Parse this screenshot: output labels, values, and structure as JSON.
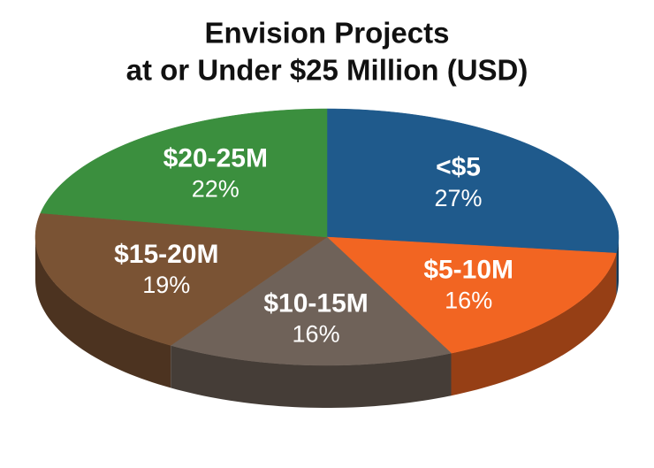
{
  "chart_data": {
    "type": "pie",
    "title": [
      "Envision Projects",
      "at or Under $25 Million (USD)"
    ],
    "categories": [
      "<$5",
      "$5-10M",
      "$10-15M",
      "$15-20M",
      "$20-25M"
    ],
    "values": [
      27,
      16,
      16,
      19,
      22
    ],
    "value_labels": [
      "27%",
      "16%",
      "16%",
      "19%",
      "22%"
    ],
    "colors": [
      "#1f5a8c",
      "#f26522",
      "#6f6259",
      "#7a5334",
      "#3b8f3e"
    ]
  }
}
